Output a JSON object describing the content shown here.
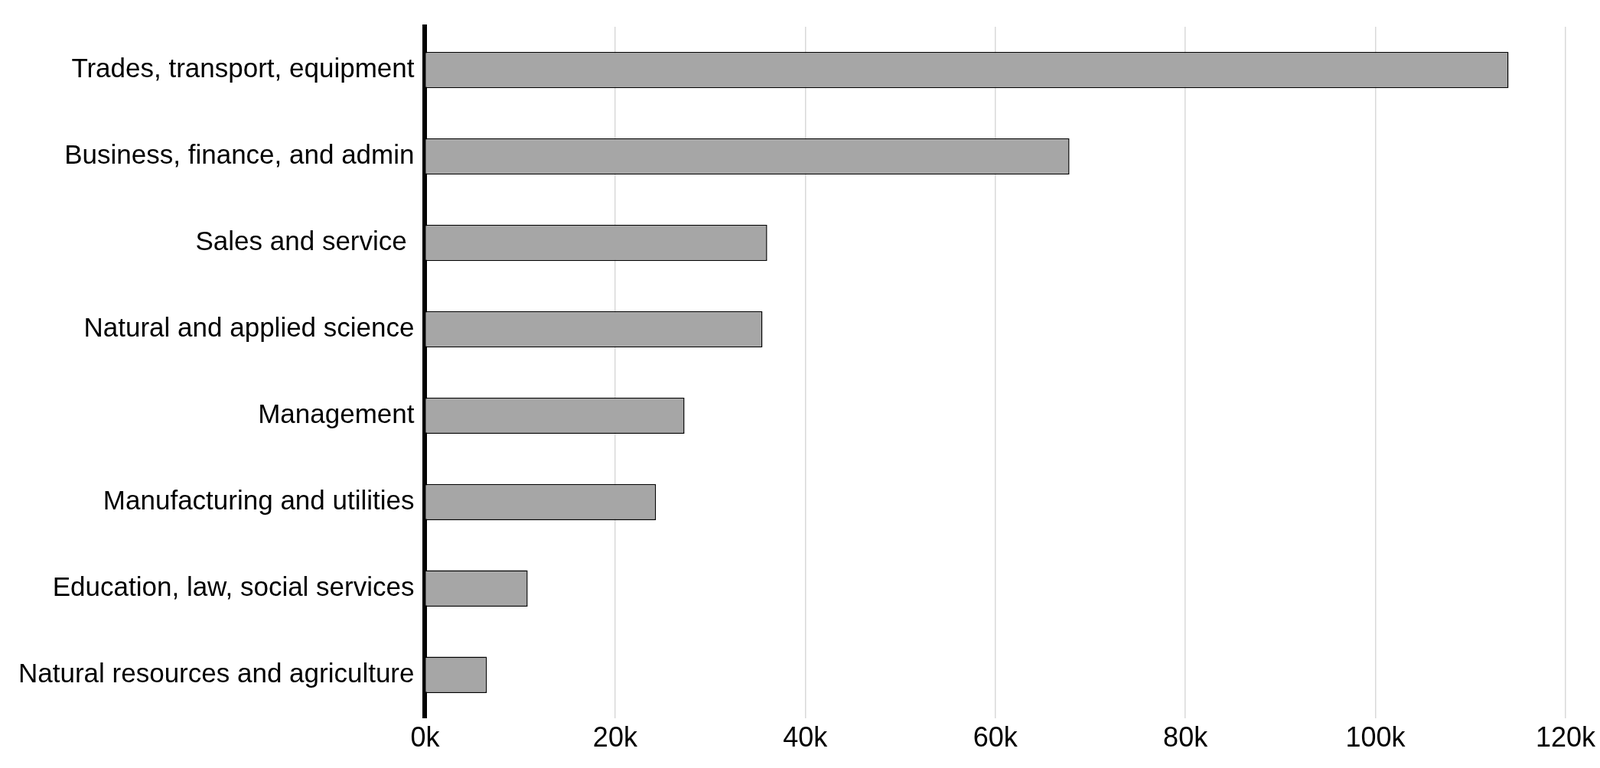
{
  "chart_data": {
    "type": "bar",
    "orientation": "horizontal",
    "categories": [
      "Trades, transport, equipment",
      "Business, finance, and admin",
      "Sales and service ",
      "Natural and applied science",
      "Management",
      "Manufacturing and utilities",
      "Education, law, social services",
      "Natural resources and agriculture"
    ],
    "values": [
      114000,
      67800,
      36000,
      35500,
      27300,
      24300,
      10800,
      6500
    ],
    "color": "#a6a6a6",
    "xlim": [
      0,
      120000
    ],
    "xticks": [
      {
        "value": 0,
        "label": "0k"
      },
      {
        "value": 20000,
        "label": "20k"
      },
      {
        "value": 40000,
        "label": "40k"
      },
      {
        "value": 60000,
        "label": "60k"
      },
      {
        "value": 80000,
        "label": "80k"
      },
      {
        "value": 100000,
        "label": "100k"
      },
      {
        "value": 120000,
        "label": "120k"
      }
    ],
    "grid": true
  }
}
